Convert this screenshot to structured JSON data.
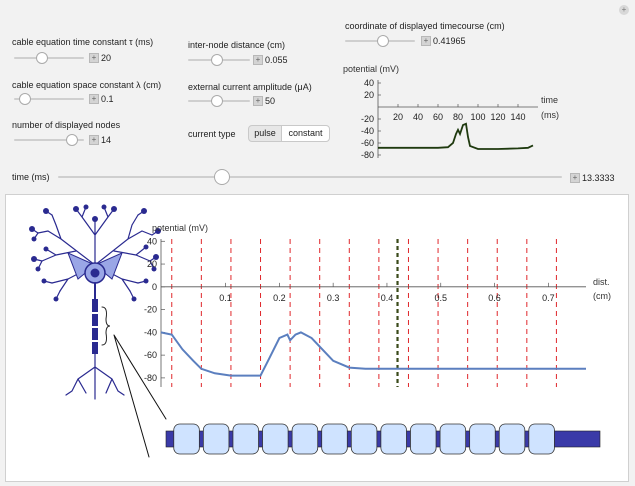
{
  "controls": {
    "tau": {
      "label": "cable equation time constant τ (ms)",
      "value": "20",
      "fraction": 0.38
    },
    "lambda": {
      "label": "cable equation space constant λ (cm)",
      "value": "0.1",
      "fraction": 0.08
    },
    "nodes": {
      "label": "number of displayed nodes",
      "value": "14",
      "fraction": 0.9
    },
    "dist": {
      "label": "inter-node distance (cm)",
      "value": "0.055",
      "fraction": 0.46
    },
    "current": {
      "label": "external current amplitude (μA)",
      "value": "50",
      "fraction": 0.46
    },
    "coord": {
      "label": "coordinate of displayed timecourse (cm)",
      "value": "0.41965",
      "fraction": 0.56
    },
    "current_type": {
      "label": "current type",
      "options": [
        "pulse",
        "constant"
      ],
      "selected": "constant"
    },
    "time": {
      "label": "time (ms)",
      "value": "13.3333",
      "fraction": 0.32
    }
  },
  "corner_button": "+",
  "small_plot": {
    "ylabel": "potential (mV)",
    "xlabel_line1": "time",
    "xlabel_line2": "(ms)",
    "yticks": [
      "40",
      "20",
      "-20",
      "-40",
      "-60",
      "-80"
    ],
    "xticks": [
      "20",
      "40",
      "60",
      "80",
      "100",
      "120",
      "140"
    ],
    "line_color": "#1f3a0f"
  },
  "main_plot": {
    "ylabel": "potential (mV)",
    "xlabel_line1": "dist.",
    "xlabel_line2": "(cm)",
    "yticks": [
      "40",
      "20",
      "0",
      "-20",
      "-40",
      "-60",
      "-80"
    ],
    "xticks": [
      "0.1",
      "0.2",
      "0.3",
      "0.4",
      "0.5",
      "0.6",
      "0.7"
    ],
    "line_color": "#5b7fbf",
    "node_line_color": "#e0282c",
    "marker_color": "#3a4a1a"
  },
  "chart_data": [
    {
      "type": "line",
      "title": "",
      "xlabel": "time (ms)",
      "ylabel": "potential (mV)",
      "xlim": [
        0,
        160
      ],
      "ylim": [
        -85,
        45
      ],
      "series": [
        {
          "x": [
            0,
            20,
            40,
            60,
            70,
            75,
            78,
            80,
            82,
            85,
            88,
            90,
            92,
            100,
            120,
            140,
            150,
            155
          ],
          "y": [
            -68,
            -68,
            -68,
            -68,
            -67,
            -60,
            -45,
            -38,
            -45,
            -30,
            -28,
            -50,
            -65,
            -70,
            -70,
            -69,
            -68,
            -64
          ]
        }
      ]
    },
    {
      "type": "line",
      "title": "",
      "xlabel": "dist. (cm)",
      "ylabel": "potential (mV)",
      "xlim": [
        -0.02,
        0.77
      ],
      "ylim": [
        -88,
        42
      ],
      "node_positions": [
        0,
        0.055,
        0.11,
        0.165,
        0.22,
        0.275,
        0.33,
        0.385,
        0.44,
        0.495,
        0.55,
        0.605,
        0.66,
        0.715
      ],
      "marker_x": 0.41965,
      "series": [
        {
          "x": [
            -0.02,
            0.0,
            0.02,
            0.04,
            0.055,
            0.08,
            0.11,
            0.14,
            0.165,
            0.18,
            0.2,
            0.215,
            0.22,
            0.23,
            0.24,
            0.26,
            0.28,
            0.3,
            0.33,
            0.36,
            0.4,
            0.5,
            0.6,
            0.7,
            0.77
          ],
          "y": [
            -40,
            -42,
            -55,
            -65,
            -72,
            -76,
            -78,
            -78,
            -78,
            -64,
            -45,
            -42,
            -47,
            -42,
            -40,
            -45,
            -55,
            -65,
            -71,
            -72,
            -72,
            -72,
            -72,
            -72,
            -72
          ]
        }
      ]
    }
  ]
}
